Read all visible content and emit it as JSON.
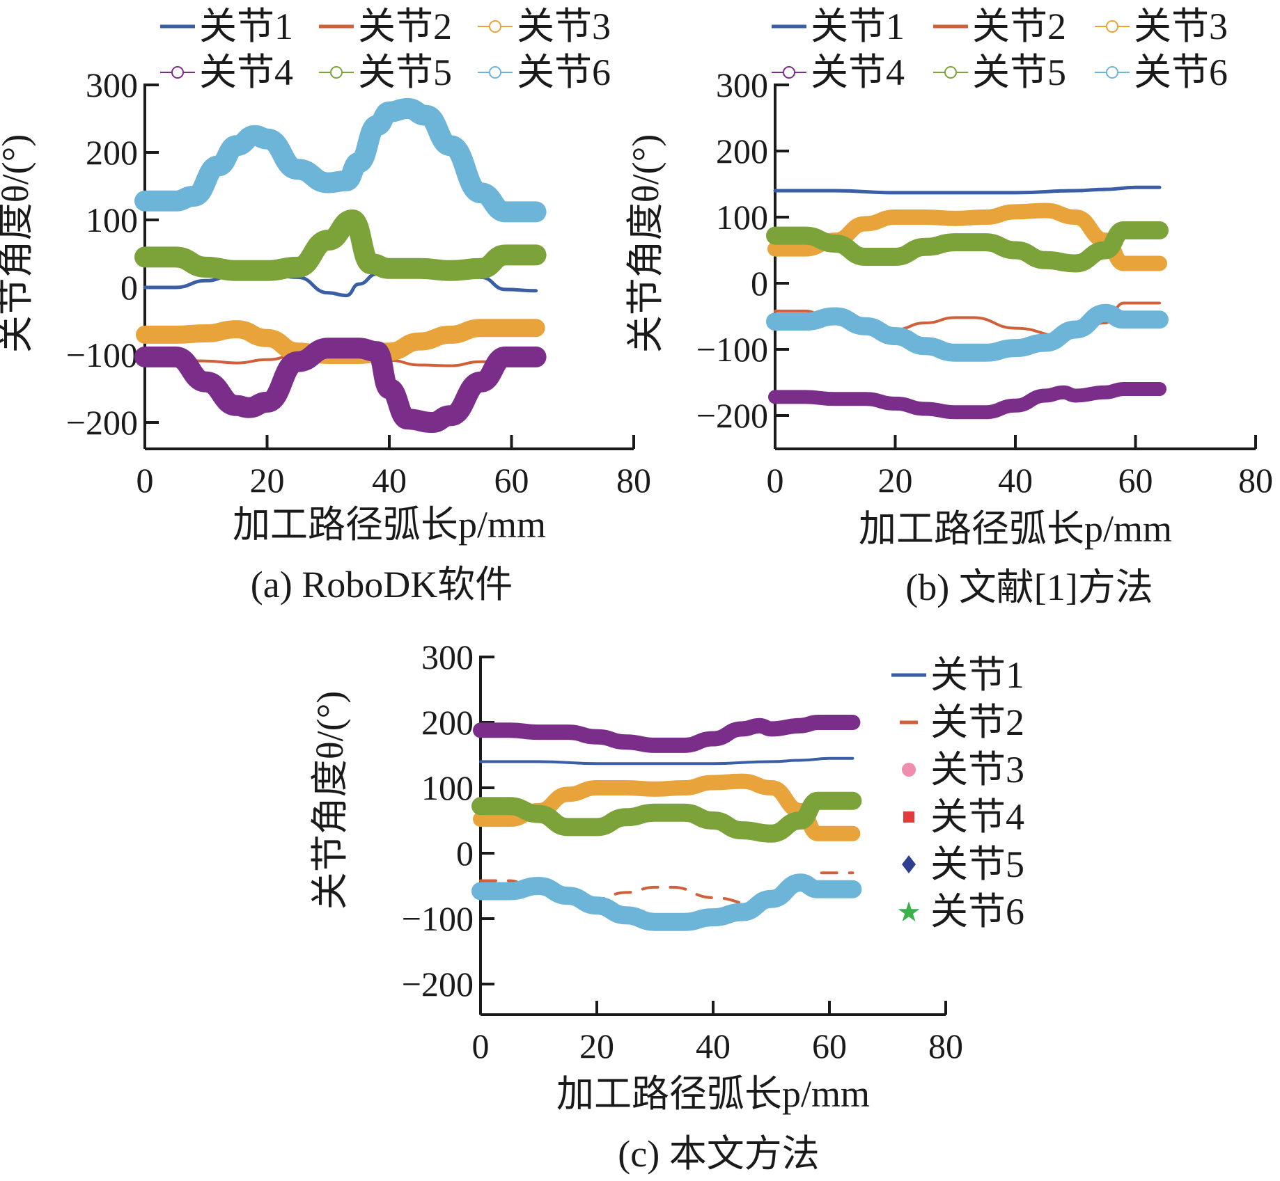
{
  "chart_data": [
    {
      "type": "line",
      "caption": "(a) RoboDK软件",
      "xlabel": "加工路径弧长p/mm",
      "ylabel": "关节角度θ/(°)",
      "xlim": [
        0,
        80
      ],
      "ylim": [
        -250,
        300
      ],
      "xticks": [
        "0",
        "20",
        "40",
        "60",
        "80"
      ],
      "yticks": [
        "300",
        "200",
        "100",
        "0",
        "−100",
        "−200"
      ],
      "legend": [
        "关节1",
        "关节2",
        "关节3",
        "关节4",
        "关节5",
        "关节6"
      ],
      "series": [
        {
          "name": "关节1",
          "color": "#3a5ea6",
          "x": [
            0,
            5,
            10,
            15,
            20,
            25,
            30,
            33,
            35,
            38,
            42,
            48,
            55,
            59,
            64
          ],
          "y": [
            0,
            0,
            10,
            20,
            20,
            15,
            -8,
            -12,
            5,
            20,
            20,
            18,
            15,
            -3,
            -5
          ]
        },
        {
          "name": "关节2",
          "color": "#d0603a",
          "x": [
            0,
            5,
            10,
            15,
            20,
            25,
            30,
            35,
            40,
            45,
            50,
            55,
            60
          ],
          "y": [
            -107,
            -107,
            -109,
            -112,
            -107,
            -100,
            -99,
            -101,
            -108,
            -115,
            -116,
            -110,
            -110
          ]
        },
        {
          "name": "关节3",
          "color": "#e8a43a",
          "x": [
            0,
            5,
            10,
            15,
            20,
            25,
            30,
            35,
            40,
            45,
            50,
            55,
            60,
            64
          ],
          "y": [
            -70,
            -70,
            -68,
            -62,
            -75,
            -95,
            -100,
            -100,
            -95,
            -80,
            -70,
            -60,
            -60,
            -60
          ]
        },
        {
          "name": "关节4",
          "color": "#7b2d8a",
          "x": [
            0,
            5,
            10,
            15,
            17,
            20,
            25,
            30,
            35,
            38,
            40,
            43,
            47,
            50,
            55,
            59,
            64
          ],
          "y": [
            -103,
            -103,
            -140,
            -175,
            -178,
            -170,
            -110,
            -90,
            -90,
            -95,
            -150,
            -195,
            -200,
            -190,
            -140,
            -103,
            -103
          ]
        },
        {
          "name": "关节5",
          "color": "#7ba33a",
          "x": [
            0,
            5,
            10,
            15,
            20,
            25,
            30,
            34,
            37,
            40,
            45,
            50,
            55,
            59,
            64
          ],
          "y": [
            45,
            45,
            30,
            25,
            25,
            30,
            70,
            100,
            35,
            28,
            28,
            25,
            28,
            48,
            48
          ]
        },
        {
          "name": "关节6",
          "color": "#6db5d8",
          "x": [
            0,
            5,
            8,
            12,
            15,
            18,
            20,
            25,
            30,
            33,
            35,
            38,
            40,
            43,
            46,
            50,
            55,
            59,
            64
          ],
          "y": [
            128,
            128,
            135,
            180,
            210,
            225,
            220,
            175,
            155,
            158,
            185,
            240,
            260,
            265,
            255,
            210,
            140,
            112,
            112
          ]
        }
      ]
    },
    {
      "type": "line",
      "caption": "(b) 文献[1]方法",
      "xlabel": "加工路径弧长p/mm",
      "ylabel": "关节角度θ/(°)",
      "xlim": [
        0,
        80
      ],
      "ylim": [
        -250,
        300
      ],
      "xticks": [
        "0",
        "20",
        "40",
        "60",
        "80"
      ],
      "yticks": [
        "300",
        "200",
        "100",
        "0",
        "−100",
        "−200"
      ],
      "legend": [
        "关节1",
        "关节2",
        "关节3",
        "关节4",
        "关节5",
        "关节6"
      ],
      "series": [
        {
          "name": "关节1",
          "color": "#3a5ea6",
          "x": [
            0,
            10,
            20,
            30,
            40,
            50,
            55,
            60,
            64
          ],
          "y": [
            140,
            140,
            137,
            137,
            137,
            140,
            142,
            145,
            145
          ]
        },
        {
          "name": "关节2",
          "color": "#d0603a",
          "x": [
            0,
            5,
            10,
            20,
            25,
            30,
            33,
            40,
            48,
            55,
            58,
            64
          ],
          "y": [
            -42,
            -42,
            -60,
            -70,
            -60,
            -52,
            -52,
            -68,
            -80,
            -60,
            -30,
            -30
          ]
        },
        {
          "name": "关节3",
          "color": "#e8a43a",
          "x": [
            0,
            5,
            10,
            15,
            20,
            25,
            30,
            35,
            40,
            45,
            50,
            55,
            58,
            64
          ],
          "y": [
            52,
            52,
            65,
            90,
            100,
            100,
            98,
            100,
            108,
            110,
            100,
            65,
            30,
            30
          ]
        },
        {
          "name": "关节4",
          "color": "#7b2d8a",
          "x": [
            0,
            5,
            10,
            15,
            20,
            25,
            30,
            35,
            40,
            45,
            48,
            50,
            55,
            58,
            64
          ],
          "y": [
            -172,
            -172,
            -175,
            -175,
            -182,
            -190,
            -195,
            -195,
            -185,
            -170,
            -165,
            -170,
            -165,
            -160,
            -160
          ]
        },
        {
          "name": "关节5",
          "color": "#7ba33a",
          "x": [
            0,
            5,
            10,
            15,
            20,
            25,
            30,
            35,
            40,
            45,
            50,
            55,
            58,
            64
          ],
          "y": [
            72,
            72,
            60,
            40,
            40,
            55,
            62,
            62,
            50,
            35,
            30,
            50,
            80,
            80
          ]
        },
        {
          "name": "关节6",
          "color": "#6db5d8",
          "x": [
            0,
            5,
            10,
            15,
            20,
            25,
            30,
            35,
            40,
            45,
            50,
            55,
            58,
            64
          ],
          "y": [
            -58,
            -58,
            -50,
            -65,
            -80,
            -95,
            -105,
            -105,
            -98,
            -90,
            -70,
            -45,
            -55,
            -55
          ]
        }
      ]
    },
    {
      "type": "line",
      "caption": "(c) 本文方法",
      "xlabel": "加工路径弧长p/mm",
      "ylabel": "关节角度θ/(°)",
      "xlim": [
        0,
        80
      ],
      "ylim": [
        -250,
        300
      ],
      "xticks": [
        "0",
        "20",
        "40",
        "60",
        "80"
      ],
      "yticks": [
        "300",
        "200",
        "100",
        "0",
        "−100",
        "−200"
      ],
      "legend": [
        "关节1",
        "关节2",
        "关节3",
        "关节4",
        "关节5",
        "关节6"
      ],
      "series": [
        {
          "name": "关节1",
          "color": "#3a5ea6",
          "x": [
            0,
            10,
            20,
            30,
            40,
            50,
            55,
            60,
            64
          ],
          "y": [
            140,
            140,
            137,
            137,
            137,
            140,
            142,
            145,
            145
          ]
        },
        {
          "name": "关节2",
          "color": "#d0603a",
          "x": [
            0,
            5,
            10,
            20,
            25,
            30,
            33,
            40,
            48,
            55,
            58,
            64
          ],
          "y": [
            -42,
            -42,
            -60,
            -70,
            -60,
            -52,
            -52,
            -68,
            -80,
            -60,
            -30,
            -30
          ]
        },
        {
          "name": "关节3",
          "color": "#e8a43a",
          "x": [
            0,
            5,
            10,
            15,
            20,
            25,
            30,
            35,
            40,
            45,
            50,
            55,
            58,
            64
          ],
          "y": [
            52,
            52,
            65,
            90,
            100,
            100,
            98,
            100,
            108,
            110,
            100,
            65,
            30,
            30
          ]
        },
        {
          "name": "关节4",
          "color": "#7b2d8a",
          "x": [
            0,
            5,
            10,
            15,
            20,
            25,
            30,
            35,
            40,
            45,
            48,
            50,
            55,
            58,
            64
          ],
          "y": [
            188,
            188,
            185,
            185,
            178,
            170,
            165,
            165,
            175,
            190,
            195,
            190,
            195,
            200,
            200
          ]
        },
        {
          "name": "关节5",
          "color": "#7ba33a",
          "x": [
            0,
            5,
            10,
            15,
            20,
            25,
            30,
            35,
            40,
            45,
            50,
            55,
            58,
            64
          ],
          "y": [
            72,
            72,
            60,
            40,
            40,
            55,
            62,
            62,
            50,
            35,
            30,
            50,
            80,
            80
          ]
        },
        {
          "name": "关节6",
          "color": "#6db5d8",
          "x": [
            0,
            5,
            10,
            15,
            20,
            25,
            30,
            35,
            40,
            45,
            50,
            55,
            58,
            64
          ],
          "y": [
            -58,
            -58,
            -50,
            -65,
            -80,
            -95,
            -105,
            -105,
            -98,
            -90,
            -70,
            -45,
            -55,
            -55
          ]
        }
      ]
    }
  ]
}
